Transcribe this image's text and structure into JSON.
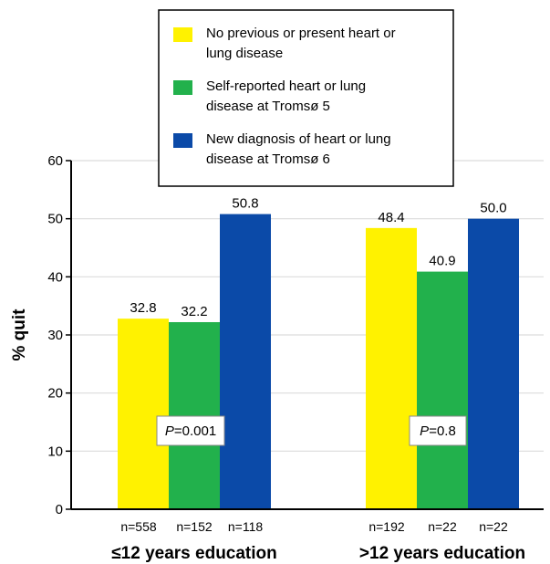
{
  "chart_data": {
    "type": "bar",
    "ylabel": "% quit",
    "ylim": [
      0,
      60
    ],
    "yticks": [
      0,
      10,
      20,
      30,
      40,
      50,
      60
    ],
    "grid": true,
    "legend_position": "top",
    "groups": [
      {
        "label": "≤12 years education",
        "n_labels": [
          "n=558",
          "n=152",
          "n=118"
        ],
        "p_value_prefix": "P",
        "p_value_suffix": "=0.001"
      },
      {
        "label": ">12 years education",
        "n_labels": [
          "n=192",
          "n=22",
          "n=22"
        ],
        "p_value_prefix": "P",
        "p_value_suffix": "=0.8"
      }
    ],
    "series": [
      {
        "name_lines": [
          "No previous or present heart or",
          "lung disease"
        ],
        "color": "#fff200",
        "values": [
          32.8,
          48.4
        ],
        "value_labels": [
          "32.8",
          "48.4"
        ]
      },
      {
        "name_lines": [
          "Self-reported heart or lung",
          "disease at Tromsø 5"
        ],
        "color": "#22b14c",
        "values": [
          32.2,
          40.9
        ],
        "value_labels": [
          "32.2",
          "40.9"
        ]
      },
      {
        "name_lines": [
          "New diagnosis of heart or lung",
          "disease at Tromsø 6"
        ],
        "color": "#0b4aa8",
        "values": [
          50.8,
          50.0
        ],
        "value_labels": [
          "50.8",
          "50.0"
        ]
      }
    ]
  }
}
